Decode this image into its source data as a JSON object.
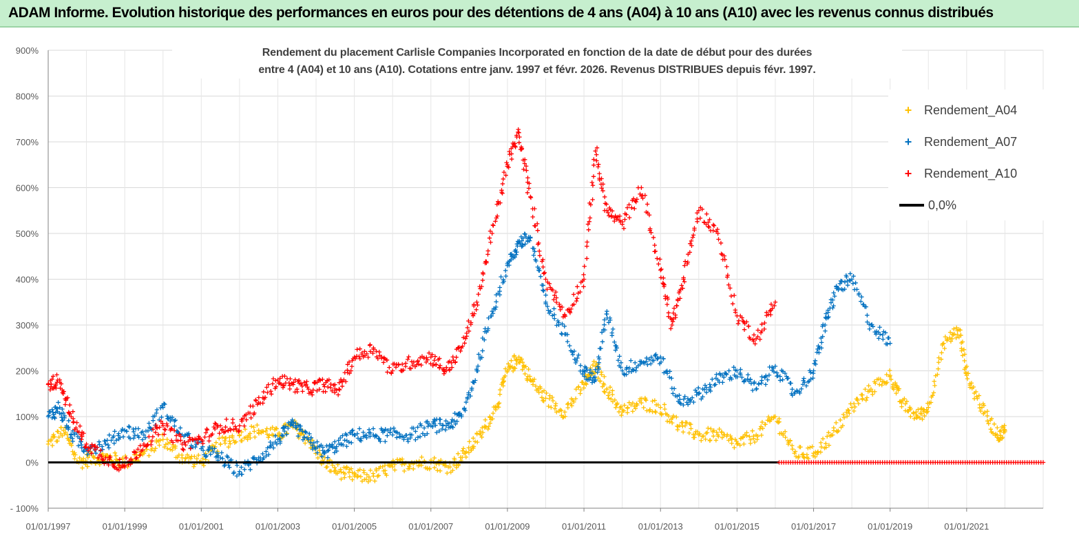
{
  "header": {
    "title": "ADAM Informe. Evolution historique des performances en euros pour des détentions de 4 ans (A04) à 10 ans (A10) avec les revenus connus distribués"
  },
  "chart_data": {
    "type": "scatter",
    "title_line1": "Rendement du placement Carlisle Companies Incorporated en fonction de la date de début pour des durées",
    "title_line2": "entre 4 (A04) et 10 ans (A10).  Cotations entre janv. 1997 et févr. 2026. Revenus DISTRIBUES depuis févr. 1997.",
    "xlabel": "",
    "ylabel": "",
    "xlim": [
      1997.0,
      2023.0
    ],
    "ylim": [
      -100,
      900
    ],
    "y_ticks": [
      "900%",
      "800%",
      "700%",
      "600%",
      "500%",
      "400%",
      "300%",
      "200%",
      "100%",
      "0%",
      "- 100%"
    ],
    "y_tick_values": [
      900,
      800,
      700,
      600,
      500,
      400,
      300,
      200,
      100,
      0,
      -100
    ],
    "x_ticks": [
      "01/01/1997",
      "01/01/1999",
      "01/01/2001",
      "01/01/2003",
      "01/01/2005",
      "01/01/2007",
      "01/01/2009",
      "01/01/2011",
      "01/01/2013",
      "01/01/2015",
      "01/01/2017",
      "01/01/2019",
      "01/01/2021"
    ],
    "x_tick_values": [
      1997,
      1999,
      2001,
      2003,
      2005,
      2007,
      2009,
      2011,
      2013,
      2015,
      2017,
      2019,
      2021
    ],
    "legend_position": "top-right",
    "series": [
      {
        "name": "Rendement_A04",
        "color": "#ffc000",
        "marker": "+",
        "x": [
          1997.0,
          1997.4,
          1997.8,
          1998.2,
          1998.6,
          1999.0,
          1999.5,
          2000.0,
          2000.5,
          2001.0,
          2001.5,
          2002.0,
          2002.5,
          2003.0,
          2003.4,
          2003.8,
          2004.2,
          2004.6,
          2005.0,
          2005.5,
          2006.0,
          2006.5,
          2007.0,
          2007.5,
          2007.9,
          2008.3,
          2008.7,
          2009.0,
          2009.3,
          2009.6,
          2010.0,
          2010.5,
          2011.0,
          2011.3,
          2011.6,
          2012.0,
          2012.5,
          2013.0,
          2013.5,
          2014.0,
          2014.5,
          2015.0,
          2015.5,
          2016.0,
          2016.5,
          2017.0,
          2017.5,
          2018.0,
          2018.5,
          2019.0,
          2019.3,
          2019.7,
          2020.0,
          2020.4,
          2020.8,
          2021.0,
          2021.4,
          2021.8,
          2022.0
        ],
        "y": [
          40,
          70,
          0,
          10,
          10,
          0,
          20,
          50,
          10,
          0,
          40,
          60,
          70,
          60,
          80,
          50,
          0,
          -20,
          -30,
          -30,
          -10,
          0,
          0,
          -10,
          20,
          60,
          120,
          200,
          230,
          180,
          140,
          110,
          170,
          210,
          160,
          110,
          130,
          120,
          80,
          60,
          60,
          40,
          60,
          100,
          20,
          20,
          60,
          120,
          160,
          190,
          130,
          100,
          120,
          260,
          290,
          190,
          120,
          60,
          70
        ]
      },
      {
        "name": "Rendement_A07",
        "color": "#0070c0",
        "marker": "+",
        "x": [
          1997.0,
          1997.3,
          1997.6,
          1998.0,
          1998.5,
          1999.0,
          1999.5,
          2000.0,
          2000.5,
          2001.0,
          2001.5,
          2002.0,
          2002.5,
          2003.0,
          2003.4,
          2003.8,
          2004.2,
          2004.6,
          2005.0,
          2005.5,
          2006.0,
          2006.5,
          2007.0,
          2007.4,
          2007.8,
          2008.2,
          2008.6,
          2009.0,
          2009.3,
          2009.6,
          2010.0,
          2010.5,
          2011.0,
          2011.3,
          2011.6,
          2012.0,
          2012.5,
          2013.0,
          2013.5,
          2014.0,
          2014.5,
          2015.0,
          2015.5,
          2016.0,
          2016.5,
          2017.0,
          2017.3,
          2017.6,
          2018.0,
          2018.5,
          2019.0
        ],
        "y": [
          100,
          120,
          60,
          30,
          40,
          70,
          60,
          120,
          60,
          30,
          10,
          -20,
          10,
          50,
          80,
          50,
          20,
          40,
          60,
          60,
          60,
          60,
          80,
          80,
          100,
          200,
          330,
          430,
          480,
          490,
          350,
          280,
          200,
          180,
          330,
          200,
          220,
          230,
          130,
          150,
          180,
          200,
          160,
          210,
          150,
          200,
          300,
          380,
          400,
          300,
          260
        ]
      },
      {
        "name": "Rendement_A10",
        "color": "#ff0000",
        "marker": "+",
        "x": [
          1997.0,
          1997.3,
          1997.6,
          1998.0,
          1998.5,
          1999.0,
          1999.5,
          2000.0,
          2000.5,
          2001.0,
          2001.5,
          2002.0,
          2002.5,
          2003.0,
          2003.4,
          2003.8,
          2004.2,
          2004.6,
          2005.0,
          2005.5,
          2006.0,
          2006.5,
          2007.0,
          2007.4,
          2007.8,
          2008.2,
          2008.6,
          2009.0,
          2009.3,
          2009.6,
          2010.0,
          2010.5,
          2011.0,
          2011.3,
          2011.6,
          2012.0,
          2012.5,
          2013.0,
          2013.3,
          2013.6,
          2014.0,
          2014.5,
          2015.0,
          2015.5,
          2016.0
        ],
        "y": [
          170,
          180,
          100,
          40,
          10,
          -10,
          40,
          80,
          40,
          50,
          80,
          80,
          130,
          180,
          170,
          160,
          170,
          160,
          230,
          250,
          200,
          220,
          230,
          200,
          250,
          350,
          500,
          650,
          720,
          580,
          400,
          320,
          400,
          680,
          550,
          520,
          600,
          420,
          300,
          400,
          550,
          500,
          320,
          270,
          350
        ]
      },
      {
        "name": "0,0%",
        "color": "#000000",
        "marker": "line",
        "x": [
          1997.0,
          2016.1
        ],
        "y": [
          0,
          0
        ]
      }
    ]
  }
}
